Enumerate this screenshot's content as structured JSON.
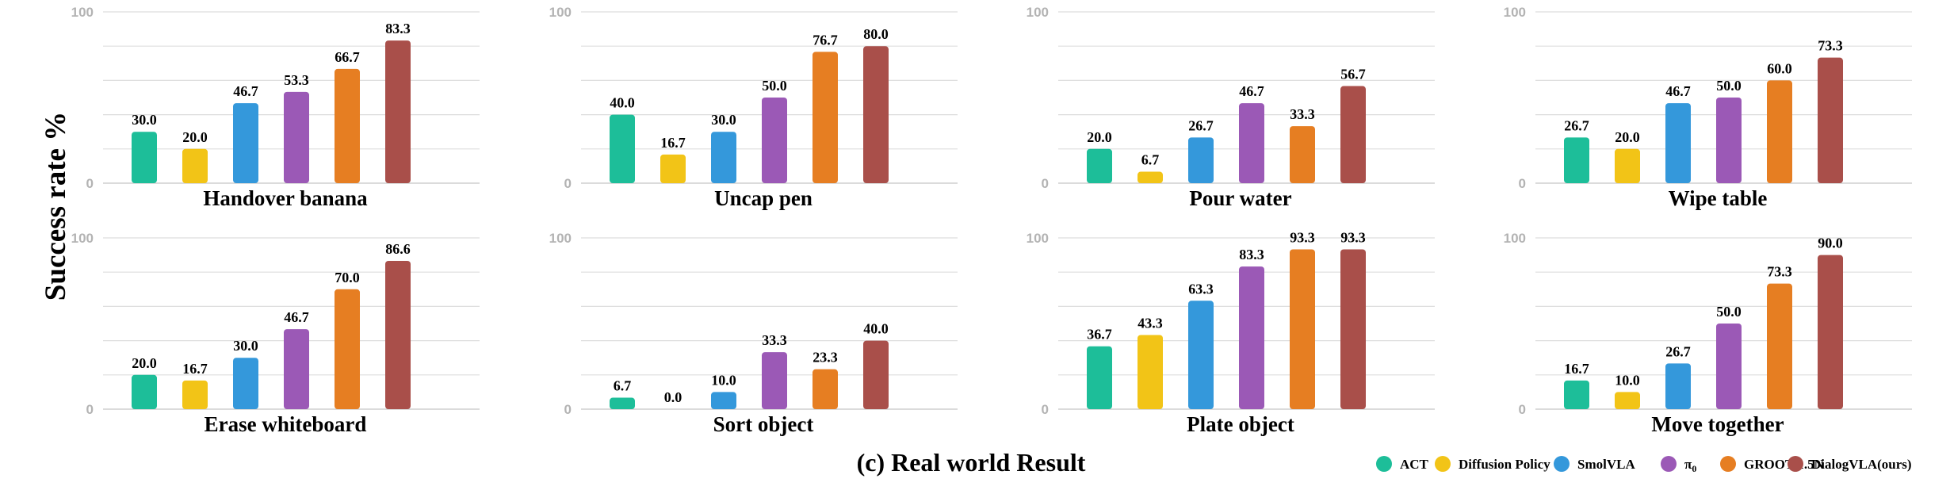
{
  "figure": {
    "ylabel": "Success rate %",
    "caption": "(c) Real world Result"
  },
  "legend": {
    "placement": "bottom-right",
    "items": [
      {
        "name": "ACT",
        "color": "#1dbe99"
      },
      {
        "name": "Diffusion Policy",
        "color": "#f2c417"
      },
      {
        "name": "SmolVLA",
        "color": "#3498db"
      },
      {
        "name": "π0",
        "color": "#9b59b6"
      },
      {
        "name": "GROOT-1.5N",
        "color": "#e67e22"
      },
      {
        "name": "DialogVLA(ours)",
        "color": "#a94f4a"
      }
    ]
  },
  "chart_data": [
    {
      "type": "bar",
      "title": "Handover banana",
      "categories": [
        "ACT",
        "Diffusion Policy",
        "SmolVLA",
        "π0",
        "GROOT-1.5N",
        "DialogVLA(ours)"
      ],
      "values": [
        30.0,
        20.0,
        46.7,
        53.3,
        66.7,
        83.3
      ],
      "labels": [
        "30.0",
        "20.0",
        "46.7",
        "53.3",
        "66.7",
        "83.3"
      ],
      "ylim": [
        0,
        100
      ],
      "yticks": [
        "0",
        "100"
      ],
      "grid": true
    },
    {
      "type": "bar",
      "title": "Uncap pen",
      "categories": [
        "ACT",
        "Diffusion Policy",
        "SmolVLA",
        "π0",
        "GROOT-1.5N",
        "DialogVLA(ours)"
      ],
      "values": [
        40.0,
        16.7,
        30.0,
        50.0,
        76.7,
        80.0
      ],
      "labels": [
        "40.0",
        "16.7",
        "30.0",
        "50.0",
        "76.7",
        "80.0"
      ],
      "ylim": [
        0,
        100
      ],
      "yticks": [
        "0",
        "100"
      ],
      "grid": true
    },
    {
      "type": "bar",
      "title": "Pour water",
      "categories": [
        "ACT",
        "Diffusion Policy",
        "SmolVLA",
        "π0",
        "GROOT-1.5N",
        "DialogVLA(ours)"
      ],
      "values": [
        20.0,
        6.7,
        26.7,
        46.7,
        33.3,
        56.7
      ],
      "labels": [
        "20.0",
        "6.7",
        "26.7",
        "46.7",
        "33.3",
        "56.7"
      ],
      "ylim": [
        0,
        100
      ],
      "yticks": [
        "0",
        "100"
      ],
      "grid": true
    },
    {
      "type": "bar",
      "title": "Wipe table",
      "categories": [
        "ACT",
        "Diffusion Policy",
        "SmolVLA",
        "π0",
        "GROOT-1.5N",
        "DialogVLA(ours)"
      ],
      "values": [
        26.7,
        20.0,
        46.7,
        50.0,
        60.0,
        73.3
      ],
      "labels": [
        "26.7",
        "20.0",
        "46.7",
        "50.0",
        "60.0",
        "73.3"
      ],
      "ylim": [
        0,
        100
      ],
      "yticks": [
        "0",
        "100"
      ],
      "grid": true
    },
    {
      "type": "bar",
      "title": "Erase whiteboard",
      "categories": [
        "ACT",
        "Diffusion Policy",
        "SmolVLA",
        "π0",
        "GROOT-1.5N",
        "DialogVLA(ours)"
      ],
      "values": [
        20.0,
        16.7,
        30.0,
        46.7,
        70.0,
        86.6
      ],
      "labels": [
        "20.0",
        "16.7",
        "30.0",
        "46.7",
        "70.0",
        "86.6"
      ],
      "ylim": [
        0,
        100
      ],
      "yticks": [
        "0",
        "100"
      ],
      "grid": true
    },
    {
      "type": "bar",
      "title": "Sort object",
      "categories": [
        "ACT",
        "Diffusion Policy",
        "SmolVLA",
        "π0",
        "GROOT-1.5N",
        "DialogVLA(ours)"
      ],
      "values": [
        6.7,
        0.0,
        10.0,
        33.3,
        23.3,
        40.0
      ],
      "labels": [
        "6.7",
        "0.0",
        "10.0",
        "33.3",
        "23.3",
        "40.0"
      ],
      "ylim": [
        0,
        100
      ],
      "yticks": [
        "0",
        "100"
      ],
      "grid": true
    },
    {
      "type": "bar",
      "title": "Plate object",
      "categories": [
        "ACT",
        "Diffusion Policy",
        "SmolVLA",
        "π0",
        "GROOT-1.5N",
        "DialogVLA(ours)"
      ],
      "values": [
        36.7,
        43.3,
        63.3,
        83.3,
        93.3,
        93.3
      ],
      "labels": [
        "36.7",
        "43.3",
        "63.3",
        "83.3",
        "93.3",
        "93.3"
      ],
      "ylim": [
        0,
        100
      ],
      "yticks": [
        "0",
        "100"
      ],
      "grid": true
    },
    {
      "type": "bar",
      "title": "Move together",
      "categories": [
        "ACT",
        "Diffusion Policy",
        "SmolVLA",
        "π0",
        "GROOT-1.5N",
        "DialogVLA(ours)"
      ],
      "values": [
        16.7,
        10.0,
        26.7,
        50.0,
        73.3,
        90.0
      ],
      "labels": [
        "16.7",
        "10.0",
        "26.7",
        "50.0",
        "73.3",
        "90.0"
      ],
      "ylim": [
        0,
        100
      ],
      "yticks": [
        "0",
        "100"
      ],
      "grid": true
    }
  ]
}
